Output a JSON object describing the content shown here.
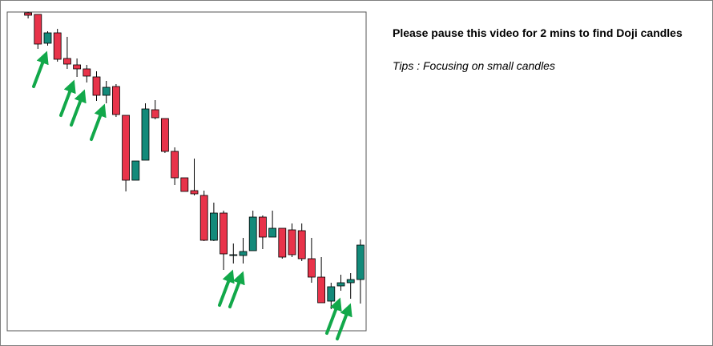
{
  "chart_data": {
    "type": "candlestick",
    "open": [
      397,
      395,
      359,
      372,
      340,
      332,
      327,
      317,
      294,
      305,
      269,
      188,
      213,
      276,
      265,
      224,
      191,
      175,
      169,
      113,
      147,
      95,
      94,
      100,
      142,
      117,
      128,
      126,
      125,
      90,
      67,
      37,
      56,
      60,
      64
    ],
    "high": [
      398,
      395,
      374,
      377,
      367,
      340,
      332,
      324,
      312,
      308,
      269,
      212,
      284,
      288,
      265,
      229,
      191,
      215,
      175,
      160,
      150,
      109,
      116,
      150,
      144,
      150,
      128,
      134,
      134,
      116,
      92,
      60,
      70,
      72,
      114
    ],
    "low": [
      390,
      352,
      356,
      336,
      327,
      317,
      310,
      287,
      284,
      267,
      174,
      188,
      213,
      264,
      222,
      182,
      174,
      169,
      112,
      112,
      76,
      84,
      84,
      100,
      102,
      117,
      90,
      92,
      87,
      60,
      35,
      27,
      50,
      40,
      34
    ],
    "close": [
      394,
      358,
      372,
      339,
      333,
      327,
      318,
      294,
      304,
      270,
      188,
      212,
      277,
      266,
      224,
      191,
      174,
      171,
      113,
      147,
      96,
      95,
      99,
      142,
      117,
      128,
      92,
      95,
      90,
      67,
      35,
      55,
      60,
      64,
      107
    ],
    "ylim": [
      0,
      400
    ],
    "up_color": "#138a7a",
    "down_color": "#e8334a"
  },
  "instructions": {
    "title": "Please pause this video for 2 mins to find Doji candles",
    "tips": "Tips : Focusing on small candles"
  }
}
